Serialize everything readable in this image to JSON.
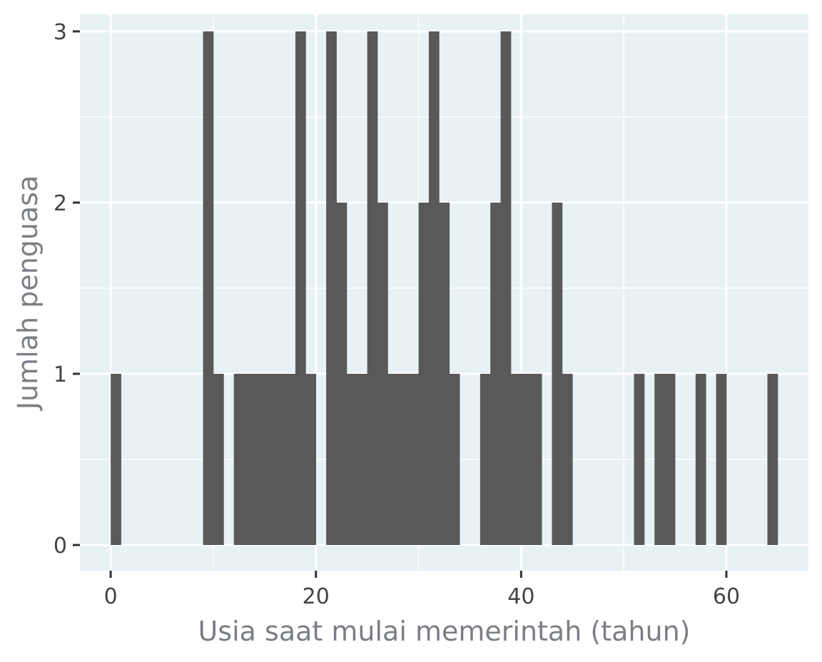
{
  "chart_data": {
    "type": "bar",
    "title": "",
    "xlabel": "Usia saat mulai memerintah (tahun)",
    "ylabel": "Jumlah penguasa",
    "xlim": [
      -3,
      68
    ],
    "ylim": [
      -0.15,
      3.1
    ],
    "bin_width": 1,
    "x_ticks": [
      0,
      20,
      40,
      60
    ],
    "y_ticks": [
      0,
      1,
      2,
      3
    ],
    "grid": true,
    "background_color": "#e8f1f4",
    "bar_color": "#595959",
    "bins": [
      {
        "x": 0,
        "count": 1
      },
      {
        "x": 9,
        "count": 3
      },
      {
        "x": 10,
        "count": 1
      },
      {
        "x": 12,
        "count": 1
      },
      {
        "x": 13,
        "count": 1
      },
      {
        "x": 14,
        "count": 1
      },
      {
        "x": 15,
        "count": 1
      },
      {
        "x": 16,
        "count": 1
      },
      {
        "x": 17,
        "count": 1
      },
      {
        "x": 18,
        "count": 3
      },
      {
        "x": 19,
        "count": 1
      },
      {
        "x": 21,
        "count": 3
      },
      {
        "x": 22,
        "count": 2
      },
      {
        "x": 23,
        "count": 1
      },
      {
        "x": 24,
        "count": 1
      },
      {
        "x": 25,
        "count": 3
      },
      {
        "x": 26,
        "count": 2
      },
      {
        "x": 27,
        "count": 1
      },
      {
        "x": 28,
        "count": 1
      },
      {
        "x": 29,
        "count": 1
      },
      {
        "x": 30,
        "count": 2
      },
      {
        "x": 31,
        "count": 3
      },
      {
        "x": 32,
        "count": 2
      },
      {
        "x": 33,
        "count": 1
      },
      {
        "x": 36,
        "count": 1
      },
      {
        "x": 37,
        "count": 2
      },
      {
        "x": 38,
        "count": 3
      },
      {
        "x": 39,
        "count": 1
      },
      {
        "x": 40,
        "count": 1
      },
      {
        "x": 41,
        "count": 1
      },
      {
        "x": 43,
        "count": 2
      },
      {
        "x": 44,
        "count": 1
      },
      {
        "x": 51,
        "count": 1
      },
      {
        "x": 53,
        "count": 1
      },
      {
        "x": 54,
        "count": 1
      },
      {
        "x": 57,
        "count": 1
      },
      {
        "x": 59,
        "count": 1
      },
      {
        "x": 64,
        "count": 1
      }
    ]
  }
}
